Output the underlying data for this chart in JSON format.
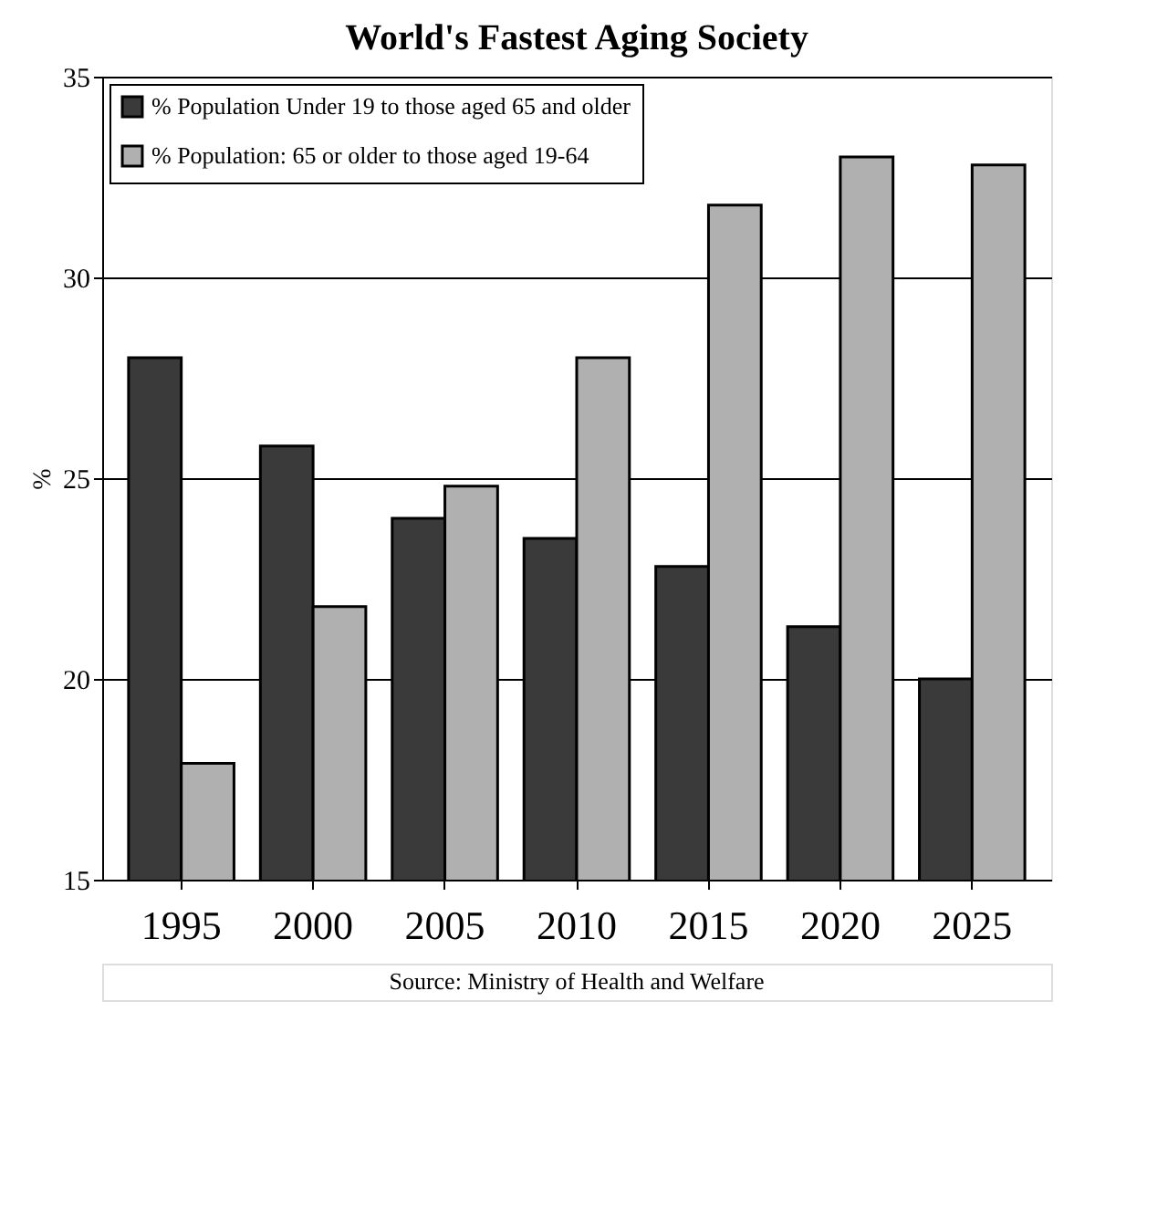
{
  "chart_data": {
    "type": "bar",
    "title": "World's Fastest Aging Society",
    "ylabel": "%",
    "categories": [
      "1995",
      "2000",
      "2005",
      "2010",
      "2015",
      "2020",
      "2025"
    ],
    "series": [
      {
        "name": "% Population Under 19 to those aged 65 and older",
        "color": "#3a3a3a",
        "values": [
          28.0,
          25.8,
          24.0,
          23.5,
          22.8,
          21.3,
          20.0
        ]
      },
      {
        "name": "% Population: 65 or older to those aged 19-64",
        "color": "#b0b0b0",
        "values": [
          17.9,
          21.8,
          24.8,
          28.0,
          31.8,
          33.0,
          32.8
        ]
      }
    ],
    "ylim": [
      15,
      35
    ],
    "yticks": [
      15,
      20,
      25,
      30,
      35
    ],
    "grid": "y",
    "legend": "top left",
    "annotations": [
      "Source: Ministry of Health and Welfare"
    ]
  }
}
